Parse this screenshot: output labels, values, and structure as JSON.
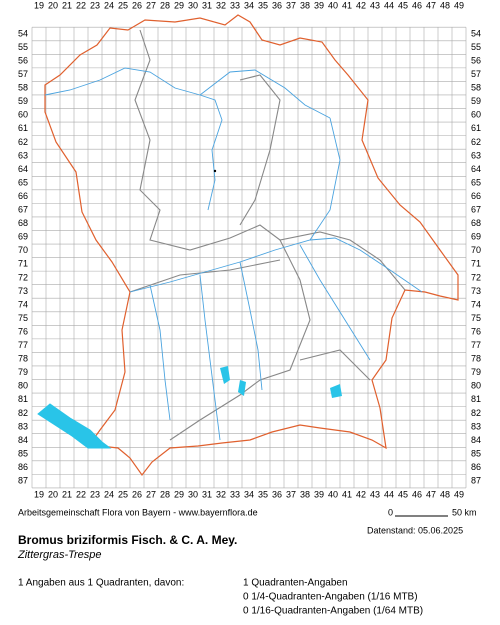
{
  "map": {
    "columns": [
      19,
      20,
      21,
      22,
      23,
      24,
      25,
      26,
      27,
      28,
      29,
      30,
      31,
      32,
      33,
      34,
      35,
      36,
      37,
      38,
      39,
      40,
      41,
      42,
      43,
      44,
      45,
      46,
      47,
      48,
      49
    ],
    "rows": [
      54,
      55,
      56,
      57,
      58,
      59,
      60,
      61,
      62,
      63,
      64,
      65,
      66,
      67,
      68,
      69,
      70,
      71,
      72,
      73,
      74,
      75,
      76,
      77,
      78,
      79,
      80,
      81,
      82,
      83,
      84,
      85,
      86,
      87
    ]
  },
  "credit": "Arbeitsgemeinschaft Flora von Bayern - www.bayernflora.de",
  "scale": {
    "start": "0",
    "end": "50 km"
  },
  "date": "Datenstand: 05.06.2025",
  "species": {
    "name": "Bromus briziformis Fisch. & C. A. Mey.",
    "common_name": "Zittergras-Trespe"
  },
  "summary": {
    "total": "1 Angaben aus 1 Quadranten, davon:",
    "details": [
      "1 Quadranten-Angaben",
      "0 1/4-Quadranten-Angaben (1/16 MTB)",
      "0 1/16-Quadranten-Angaben (1/64 MTB)"
    ]
  }
}
